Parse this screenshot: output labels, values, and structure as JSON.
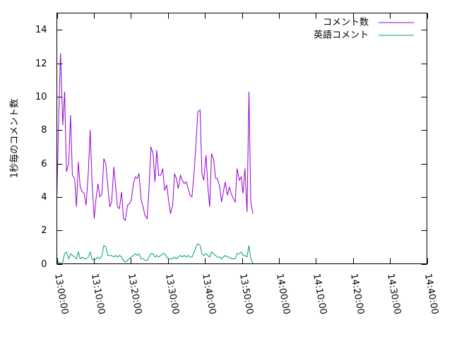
{
  "chart_data": {
    "type": "line",
    "ylabel": "1秒毎のコメント数",
    "xlabel": "",
    "title": "",
    "ylim": [
      0,
      15
    ],
    "yticks": [
      0,
      2,
      4,
      6,
      8,
      10,
      12,
      14
    ],
    "xlim_minutes": [
      0,
      100
    ],
    "xticks": [
      {
        "label": "13:00:00",
        "minute": 0
      },
      {
        "label": "13:10:00",
        "minute": 10
      },
      {
        "label": "13:20:00",
        "minute": 20
      },
      {
        "label": "13:30:00",
        "minute": 30
      },
      {
        "label": "13:40:00",
        "minute": 40
      },
      {
        "label": "13:50:00",
        "minute": 50
      },
      {
        "label": "14:00:00",
        "minute": 60
      },
      {
        "label": "14:10:00",
        "minute": 70
      },
      {
        "label": "14:20:00",
        "minute": 80
      },
      {
        "label": "14:30:00",
        "minute": 90
      },
      {
        "label": "14:40:00",
        "minute": 100
      }
    ],
    "legend_position": "top-right",
    "series": [
      {
        "name": "コメント数",
        "color": "#9400d3",
        "points": [
          [
            0.0,
            3.9
          ],
          [
            0.5,
            8.7
          ],
          [
            1.0,
            12.6
          ],
          [
            1.6,
            8.3
          ],
          [
            2.1,
            10.3
          ],
          [
            2.6,
            5.5
          ],
          [
            3.2,
            6.0
          ],
          [
            3.7,
            8.9
          ],
          [
            4.2,
            5.3
          ],
          [
            4.8,
            5.1
          ],
          [
            5.3,
            3.4
          ],
          [
            5.8,
            6.1
          ],
          [
            6.3,
            4.6
          ],
          [
            6.9,
            4.3
          ],
          [
            7.4,
            4.2
          ],
          [
            7.9,
            3.5
          ],
          [
            8.5,
            5.4
          ],
          [
            9.0,
            8.0
          ],
          [
            9.5,
            4.9
          ],
          [
            10.1,
            2.7
          ],
          [
            10.6,
            3.9
          ],
          [
            11.1,
            4.8
          ],
          [
            11.6,
            4.0
          ],
          [
            12.2,
            4.2
          ],
          [
            12.7,
            6.3
          ],
          [
            13.2,
            6.0
          ],
          [
            13.8,
            4.6
          ],
          [
            14.3,
            3.4
          ],
          [
            14.8,
            3.7
          ],
          [
            15.4,
            5.8
          ],
          [
            15.9,
            4.6
          ],
          [
            16.4,
            3.4
          ],
          [
            16.9,
            3.3
          ],
          [
            17.5,
            4.3
          ],
          [
            18.0,
            2.7
          ],
          [
            18.5,
            2.6
          ],
          [
            19.1,
            3.5
          ],
          [
            19.6,
            3.6
          ],
          [
            20.1,
            3.8
          ],
          [
            20.7,
            4.8
          ],
          [
            21.2,
            5.2
          ],
          [
            21.7,
            5.1
          ],
          [
            22.2,
            5.4
          ],
          [
            22.8,
            3.8
          ],
          [
            23.3,
            3.4
          ],
          [
            23.8,
            2.9
          ],
          [
            24.4,
            2.7
          ],
          [
            24.9,
            4.5
          ],
          [
            25.4,
            7.0
          ],
          [
            26.0,
            6.6
          ],
          [
            26.5,
            4.9
          ],
          [
            27.0,
            6.8
          ],
          [
            27.5,
            5.3
          ],
          [
            28.1,
            5.3
          ],
          [
            28.6,
            5.7
          ],
          [
            29.1,
            4.4
          ],
          [
            29.7,
            4.7
          ],
          [
            30.2,
            3.8
          ],
          [
            30.7,
            3.0
          ],
          [
            31.3,
            3.5
          ],
          [
            31.8,
            5.4
          ],
          [
            32.3,
            5.1
          ],
          [
            32.8,
            4.5
          ],
          [
            33.4,
            5.3
          ],
          [
            33.9,
            5.0
          ],
          [
            34.4,
            4.8
          ],
          [
            35.0,
            4.9
          ],
          [
            35.5,
            4.5
          ],
          [
            36.0,
            4.1
          ],
          [
            36.5,
            4.0
          ],
          [
            37.1,
            5.5
          ],
          [
            37.6,
            7.2
          ],
          [
            38.1,
            9.1
          ],
          [
            38.7,
            9.2
          ],
          [
            39.2,
            5.4
          ],
          [
            39.7,
            5.0
          ],
          [
            40.3,
            6.5
          ],
          [
            40.8,
            4.6
          ],
          [
            41.3,
            3.4
          ],
          [
            41.8,
            6.6
          ],
          [
            42.4,
            6.2
          ],
          [
            42.9,
            5.1
          ],
          [
            43.4,
            5.1
          ],
          [
            44.0,
            4.6
          ],
          [
            44.5,
            3.7
          ],
          [
            45.0,
            4.3
          ],
          [
            45.5,
            4.9
          ],
          [
            46.1,
            4.1
          ],
          [
            46.6,
            4.6
          ],
          [
            47.1,
            4.2
          ],
          [
            47.7,
            3.9
          ],
          [
            48.2,
            3.7
          ],
          [
            48.7,
            5.7
          ],
          [
            49.3,
            5.0
          ],
          [
            49.8,
            5.2
          ],
          [
            50.3,
            4.2
          ],
          [
            50.8,
            5.7
          ],
          [
            51.4,
            3.1
          ],
          [
            51.9,
            10.3
          ],
          [
            52.4,
            3.7
          ],
          [
            53.0,
            3.0
          ]
        ]
      },
      {
        "name": "英語コメント",
        "color": "#009e73",
        "points": [
          [
            0.0,
            0.0
          ],
          [
            0.5,
            0.1
          ],
          [
            1.0,
            0.0
          ],
          [
            1.6,
            0.1
          ],
          [
            2.1,
            0.6
          ],
          [
            2.6,
            0.7
          ],
          [
            3.2,
            0.3
          ],
          [
            3.7,
            0.6
          ],
          [
            4.2,
            0.5
          ],
          [
            4.8,
            0.4
          ],
          [
            5.3,
            0.3
          ],
          [
            5.8,
            0.7
          ],
          [
            6.3,
            0.3
          ],
          [
            6.9,
            0.4
          ],
          [
            7.4,
            0.3
          ],
          [
            7.9,
            0.3
          ],
          [
            8.5,
            0.4
          ],
          [
            9.0,
            0.7
          ],
          [
            9.5,
            0.3
          ],
          [
            10.1,
            0.2
          ],
          [
            10.6,
            0.3
          ],
          [
            11.1,
            0.4
          ],
          [
            11.6,
            0.3
          ],
          [
            12.2,
            0.5
          ],
          [
            12.7,
            1.1
          ],
          [
            13.2,
            1.0
          ],
          [
            13.8,
            0.5
          ],
          [
            14.3,
            0.5
          ],
          [
            14.8,
            0.5
          ],
          [
            15.4,
            0.4
          ],
          [
            15.9,
            0.5
          ],
          [
            16.4,
            0.4
          ],
          [
            16.9,
            0.5
          ],
          [
            17.5,
            0.4
          ],
          [
            18.0,
            0.2
          ],
          [
            18.5,
            0.1
          ],
          [
            19.1,
            0.2
          ],
          [
            19.6,
            0.3
          ],
          [
            20.1,
            0.4
          ],
          [
            20.7,
            0.5
          ],
          [
            21.2,
            0.6
          ],
          [
            21.7,
            0.5
          ],
          [
            22.2,
            0.6
          ],
          [
            22.8,
            0.3
          ],
          [
            23.3,
            0.3
          ],
          [
            23.8,
            0.2
          ],
          [
            24.4,
            0.2
          ],
          [
            24.9,
            0.4
          ],
          [
            25.4,
            0.6
          ],
          [
            26.0,
            0.6
          ],
          [
            26.5,
            0.4
          ],
          [
            27.0,
            0.5
          ],
          [
            27.5,
            0.4
          ],
          [
            28.1,
            0.5
          ],
          [
            28.6,
            0.6
          ],
          [
            29.1,
            0.6
          ],
          [
            29.7,
            0.4
          ],
          [
            30.2,
            0.3
          ],
          [
            30.7,
            0.3
          ],
          [
            31.3,
            0.3
          ],
          [
            31.8,
            0.4
          ],
          [
            32.3,
            0.3
          ],
          [
            32.8,
            0.4
          ],
          [
            33.4,
            0.5
          ],
          [
            33.9,
            0.4
          ],
          [
            34.4,
            0.5
          ],
          [
            35.0,
            0.4
          ],
          [
            35.5,
            0.5
          ],
          [
            36.0,
            0.4
          ],
          [
            36.5,
            0.4
          ],
          [
            37.1,
            0.7
          ],
          [
            37.6,
            1.0
          ],
          [
            38.1,
            1.2
          ],
          [
            38.7,
            1.1
          ],
          [
            39.2,
            0.6
          ],
          [
            39.7,
            0.5
          ],
          [
            40.3,
            0.6
          ],
          [
            40.8,
            0.5
          ],
          [
            41.3,
            0.4
          ],
          [
            41.8,
            0.7
          ],
          [
            42.4,
            0.6
          ],
          [
            42.9,
            0.5
          ],
          [
            43.4,
            0.4
          ],
          [
            44.0,
            0.4
          ],
          [
            44.5,
            0.3
          ],
          [
            45.0,
            0.4
          ],
          [
            45.5,
            0.5
          ],
          [
            46.1,
            0.4
          ],
          [
            46.6,
            0.4
          ],
          [
            47.1,
            0.3
          ],
          [
            47.7,
            0.3
          ],
          [
            48.2,
            0.3
          ],
          [
            48.7,
            0.6
          ],
          [
            49.3,
            0.6
          ],
          [
            49.8,
            0.7
          ],
          [
            50.3,
            0.5
          ],
          [
            50.8,
            0.5
          ],
          [
            51.4,
            0.4
          ],
          [
            51.9,
            1.1
          ],
          [
            52.4,
            0.3
          ],
          [
            53.0,
            0.0
          ]
        ]
      }
    ]
  }
}
